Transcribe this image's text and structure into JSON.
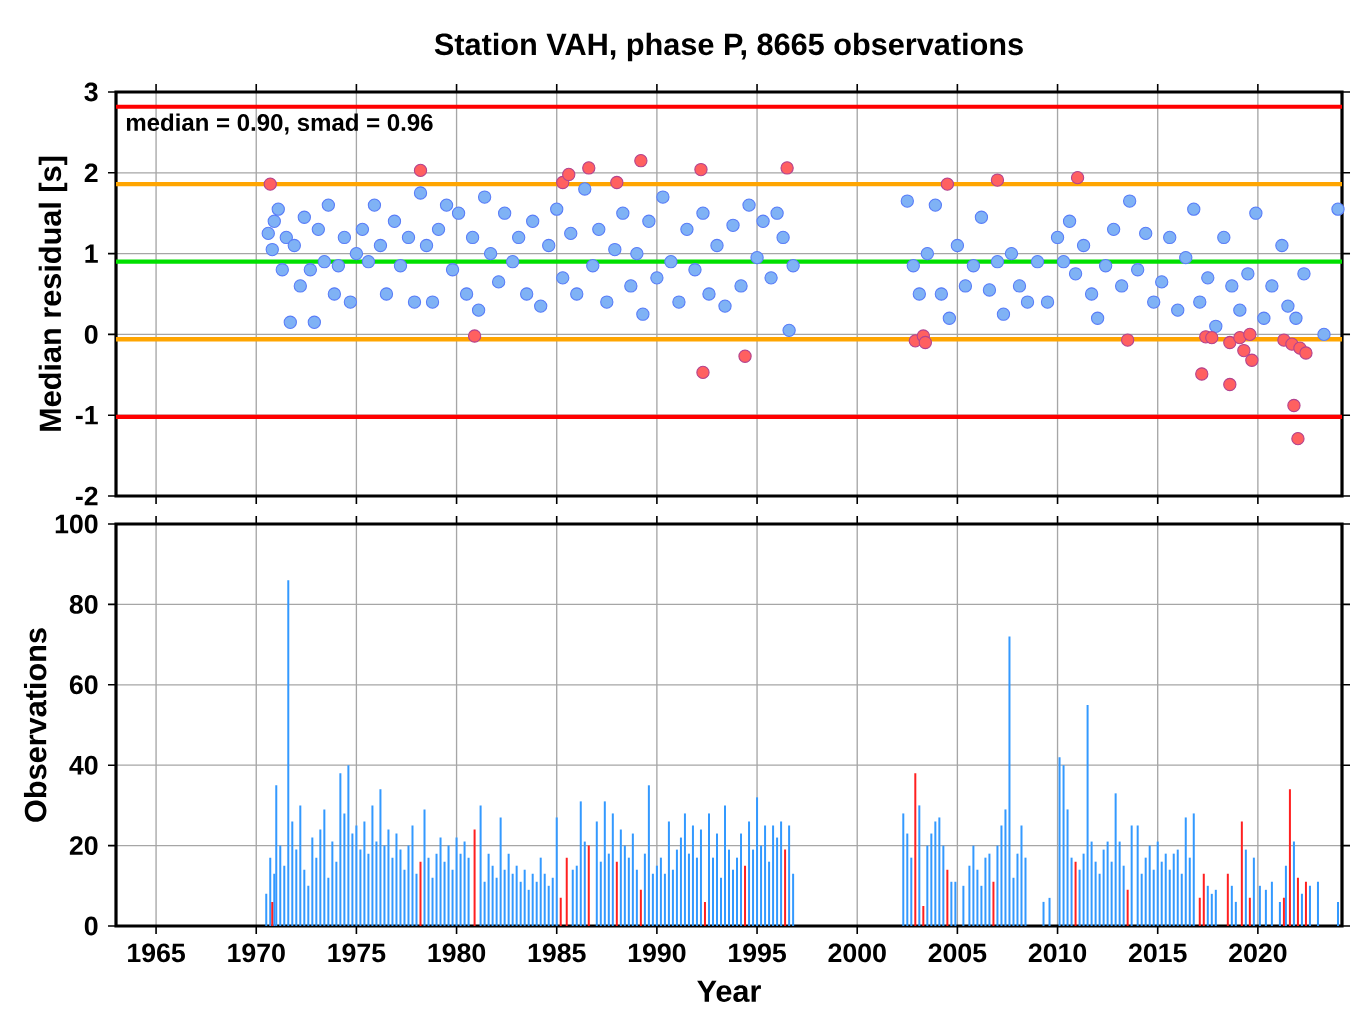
{
  "chart_data": [
    {
      "type": "scatter",
      "title": "Station VAH, phase P, 8665 observations",
      "ylabel": "Median residual [s]",
      "xlim": [
        1963,
        2024.2
      ],
      "xticks": [
        1965,
        1970,
        1975,
        1980,
        1985,
        1990,
        1995,
        2000,
        2005,
        2010,
        2015,
        2020
      ],
      "ylim": [
        -2,
        3
      ],
      "yticks": [
        -2,
        -1,
        0,
        1,
        2,
        3
      ],
      "grid": true,
      "tick_labels": "y",
      "marker": "circle",
      "annotations": [
        "median = 0.90, smad = 0.96"
      ],
      "ref_lines": [
        {
          "axis": "y",
          "value": 2.82,
          "color": "#ff0000"
        },
        {
          "axis": "y",
          "value": 1.86,
          "color": "#ffa500"
        },
        {
          "axis": "y",
          "value": 0.9,
          "color": "#00e000"
        },
        {
          "axis": "y",
          "value": -0.06,
          "color": "#ffa500"
        },
        {
          "axis": "y",
          "value": -1.02,
          "color": "#ff0000"
        }
      ],
      "series": [
        {
          "color": "#7fb2f5",
          "x": [
            1970.6,
            1970.8,
            1970.9,
            1971.1,
            1971.3,
            1971.5,
            1971.7,
            1971.9,
            1972.2,
            1972.4,
            1972.7,
            1972.9,
            1973.1,
            1973.4,
            1973.6,
            1973.9,
            1974.1,
            1974.4,
            1974.7,
            1975.0,
            1975.3,
            1975.6,
            1975.9,
            1976.2,
            1976.5,
            1976.9,
            1977.2,
            1977.6,
            1977.9,
            1978.2,
            1978.5,
            1978.8,
            1979.1,
            1979.5,
            1979.8,
            1980.1,
            1980.5,
            1980.8,
            1981.1,
            1981.4,
            1981.7,
            1982.1,
            1982.4,
            1982.8,
            1983.1,
            1983.5,
            1983.8,
            1984.2,
            1984.6,
            1985.0,
            1985.3,
            1985.7,
            1986.0,
            1986.4,
            1986.8,
            1987.1,
            1987.5,
            1987.9,
            1988.3,
            1988.7,
            1989.0,
            1989.3,
            1989.6,
            1990.0,
            1990.3,
            1990.7,
            1991.1,
            1991.5,
            1991.9,
            1992.3,
            1992.6,
            1993.0,
            1993.4,
            1993.8,
            1994.2,
            1994.6,
            1995.0,
            1995.3,
            1995.7,
            1996.0,
            1996.3,
            1996.6,
            1996.8,
            2002.5,
            2002.8,
            2003.1,
            2003.5,
            2003.9,
            2004.2,
            2004.6,
            2005.0,
            2005.4,
            2005.8,
            2006.2,
            2006.6,
            2007.0,
            2007.3,
            2007.7,
            2008.1,
            2008.5,
            2009.0,
            2009.5,
            2010.0,
            2010.3,
            2010.6,
            2010.9,
            2011.3,
            2011.7,
            2012.0,
            2012.4,
            2012.8,
            2013.2,
            2013.6,
            2014.0,
            2014.4,
            2014.8,
            2015.2,
            2015.6,
            2016.0,
            2016.4,
            2016.8,
            2017.1,
            2017.5,
            2017.9,
            2018.3,
            2018.7,
            2019.1,
            2019.5,
            2019.9,
            2020.3,
            2020.7,
            2021.2,
            2021.5,
            2021.9,
            2022.3,
            2023.3,
            2024.0
          ],
          "values": [
            1.25,
            1.05,
            1.4,
            1.55,
            0.8,
            1.2,
            0.15,
            1.1,
            0.6,
            1.45,
            0.8,
            0.15,
            1.3,
            0.9,
            1.6,
            0.5,
            0.85,
            1.2,
            0.4,
            1.0,
            1.3,
            0.9,
            1.6,
            1.1,
            0.5,
            1.4,
            0.85,
            1.2,
            0.4,
            1.75,
            1.1,
            0.4,
            1.3,
            1.6,
            0.8,
            1.5,
            0.5,
            1.2,
            0.3,
            1.7,
            1.0,
            0.65,
            1.5,
            0.9,
            1.2,
            0.5,
            1.4,
            0.35,
            1.1,
            1.55,
            0.7,
            1.25,
            0.5,
            1.8,
            0.85,
            1.3,
            0.4,
            1.05,
            1.5,
            0.6,
            1.0,
            0.25,
            1.4,
            0.7,
            1.7,
            0.9,
            0.4,
            1.3,
            0.8,
            1.5,
            0.5,
            1.1,
            0.35,
            1.35,
            0.6,
            1.6,
            0.95,
            1.4,
            0.7,
            1.5,
            1.2,
            0.05,
            0.85,
            1.65,
            0.85,
            0.5,
            1.0,
            1.6,
            0.5,
            0.2,
            1.1,
            0.6,
            0.85,
            1.45,
            0.55,
            0.9,
            0.25,
            1.0,
            0.6,
            0.4,
            0.9,
            0.4,
            1.2,
            0.9,
            1.4,
            0.75,
            1.1,
            0.5,
            0.2,
            0.85,
            1.3,
            0.6,
            1.65,
            0.8,
            1.25,
            0.4,
            0.65,
            1.2,
            0.3,
            0.95,
            1.55,
            0.4,
            0.7,
            0.1,
            1.2,
            0.6,
            0.3,
            0.75,
            1.5,
            0.2,
            0.6,
            1.1,
            0.35,
            0.2,
            0.75,
            0.0,
            1.55
          ]
        },
        {
          "color": "#ff6060",
          "x": [
            1970.7,
            1978.2,
            1980.9,
            1985.3,
            1985.6,
            1986.6,
            1988.0,
            1989.2,
            1992.2,
            1992.3,
            1994.4,
            1996.5,
            2002.9,
            2003.3,
            2003.4,
            2004.5,
            2007.0,
            2011.0,
            2013.5,
            2017.2,
            2017.4,
            2017.7,
            2018.6,
            2018.6,
            2019.1,
            2019.3,
            2019.6,
            2019.7,
            2021.3,
            2021.7,
            2021.8,
            2022.0,
            2022.1,
            2022.4
          ],
          "values": [
            1.86,
            2.03,
            -0.02,
            1.88,
            1.98,
            2.06,
            1.88,
            2.15,
            2.04,
            -0.47,
            -0.27,
            2.06,
            -0.08,
            -0.02,
            -0.1,
            1.86,
            1.91,
            1.94,
            -0.07,
            -0.49,
            -0.03,
            -0.04,
            -0.1,
            -0.62,
            -0.04,
            -0.2,
            0.0,
            -0.32,
            -0.07,
            -0.12,
            -0.88,
            -1.29,
            -0.17,
            -0.23
          ]
        }
      ]
    },
    {
      "type": "bar",
      "xlabel": "Year",
      "ylabel": "Observations",
      "xlim": [
        1963,
        2024.2
      ],
      "xticks": [
        1965,
        1970,
        1975,
        1980,
        1985,
        1990,
        1995,
        2000,
        2005,
        2010,
        2015,
        2020
      ],
      "ylim": [
        0,
        100
      ],
      "yticks": [
        0,
        20,
        40,
        60,
        80,
        100
      ],
      "grid": true,
      "x": [
        1970.5,
        1970.7,
        1970.8,
        1970.9,
        1971.0,
        1971.2,
        1971.4,
        1971.6,
        1971.8,
        1972.0,
        1972.2,
        1972.4,
        1972.6,
        1972.8,
        1973.0,
        1973.2,
        1973.4,
        1973.6,
        1973.8,
        1974.0,
        1974.2,
        1974.4,
        1974.6,
        1974.8,
        1975.0,
        1975.2,
        1975.4,
        1975.6,
        1975.8,
        1976.0,
        1976.2,
        1976.4,
        1976.6,
        1976.8,
        1977.0,
        1977.2,
        1977.4,
        1977.6,
        1977.8,
        1978.0,
        1978.2,
        1978.4,
        1978.6,
        1978.8,
        1979.0,
        1979.2,
        1979.4,
        1979.6,
        1979.8,
        1980.0,
        1980.2,
        1980.4,
        1980.6,
        1980.9,
        1981.2,
        1981.4,
        1981.6,
        1981.8,
        1982.0,
        1982.2,
        1982.4,
        1982.6,
        1982.8,
        1983.0,
        1983.2,
        1983.4,
        1983.6,
        1983.8,
        1984.0,
        1984.2,
        1984.4,
        1984.6,
        1984.8,
        1985.0,
        1985.2,
        1985.5,
        1985.8,
        1986.0,
        1986.2,
        1986.4,
        1986.6,
        1987.0,
        1987.2,
        1987.4,
        1987.6,
        1987.8,
        1988.0,
        1988.2,
        1988.4,
        1988.6,
        1988.8,
        1989.0,
        1989.2,
        1989.4,
        1989.6,
        1989.8,
        1990.0,
        1990.2,
        1990.4,
        1990.6,
        1990.8,
        1991.0,
        1991.2,
        1991.4,
        1991.6,
        1991.8,
        1992.0,
        1992.2,
        1992.4,
        1992.6,
        1992.8,
        1993.0,
        1993.2,
        1993.4,
        1993.6,
        1993.8,
        1994.0,
        1994.2,
        1994.4,
        1994.6,
        1994.8,
        1995.0,
        1995.2,
        1995.4,
        1995.6,
        1995.8,
        1996.0,
        1996.2,
        1996.4,
        1996.6,
        1996.8,
        2002.3,
        2002.5,
        2002.7,
        2002.9,
        2003.1,
        2003.3,
        2003.5,
        2003.7,
        2003.9,
        2004.1,
        2004.3,
        2004.5,
        2004.7,
        2004.9,
        2005.3,
        2005.6,
        2005.8,
        2006.0,
        2006.2,
        2006.4,
        2006.6,
        2006.8,
        2007.0,
        2007.2,
        2007.4,
        2007.6,
        2007.8,
        2008.0,
        2008.2,
        2008.4,
        2009.3,
        2009.6,
        2010.1,
        2010.3,
        2010.5,
        2010.7,
        2010.9,
        2011.1,
        2011.3,
        2011.5,
        2011.7,
        2011.9,
        2012.1,
        2012.3,
        2012.5,
        2012.7,
        2012.9,
        2013.1,
        2013.3,
        2013.5,
        2013.7,
        2014.0,
        2014.2,
        2014.4,
        2014.6,
        2014.8,
        2015.0,
        2015.2,
        2015.4,
        2015.6,
        2015.8,
        2016.0,
        2016.2,
        2016.4,
        2016.6,
        2016.8,
        2017.1,
        2017.3,
        2017.5,
        2017.7,
        2017.9,
        2018.5,
        2018.7,
        2018.9,
        2019.2,
        2019.4,
        2019.6,
        2019.8,
        2020.1,
        2020.4,
        2020.7,
        2021.1,
        2021.3,
        2021.4,
        2021.6,
        2021.8,
        2022.0,
        2022.2,
        2022.4,
        2022.6,
        2023.0,
        2024.0
      ],
      "series": [
        {
          "color": "#3399ff",
          "values": [
            8,
            17,
            null,
            13,
            35,
            20,
            15,
            86,
            26,
            19,
            30,
            14,
            10,
            22,
            17,
            24,
            29,
            12,
            21,
            16,
            38,
            28,
            40,
            23,
            25,
            19,
            26,
            18,
            30,
            21,
            34,
            20,
            24,
            17,
            23,
            19,
            14,
            20,
            25,
            13,
            null,
            29,
            17,
            12,
            18,
            22,
            16,
            20,
            14,
            22,
            18,
            21,
            17,
            null,
            30,
            11,
            18,
            15,
            12,
            27,
            14,
            18,
            13,
            15,
            11,
            14,
            9,
            13,
            11,
            17,
            13,
            10,
            12,
            27,
            null,
            null,
            14,
            15,
            31,
            21,
            null,
            26,
            16,
            31,
            18,
            28,
            null,
            24,
            20,
            17,
            23,
            14,
            null,
            18,
            35,
            13,
            15,
            17,
            13,
            26,
            14,
            19,
            22,
            28,
            18,
            25,
            17,
            24,
            null,
            28,
            17,
            23,
            12,
            30,
            19,
            14,
            17,
            23,
            null,
            26,
            19,
            32,
            20,
            25,
            16,
            25,
            22,
            26,
            null,
            25,
            13,
            28,
            23,
            17,
            null,
            30,
            null,
            20,
            23,
            26,
            27,
            20,
            null,
            11,
            11,
            10,
            15,
            20,
            14,
            10,
            17,
            18,
            null,
            20,
            25,
            29,
            72,
            12,
            18,
            25,
            17,
            6,
            7,
            42,
            40,
            29,
            17,
            null,
            14,
            18,
            55,
            21,
            16,
            13,
            19,
            21,
            16,
            33,
            21,
            15,
            null,
            25,
            25,
            13,
            17,
            20,
            14,
            21,
            16,
            18,
            14,
            18,
            19,
            13,
            27,
            17,
            28,
            null,
            null,
            10,
            8,
            9,
            null,
            10,
            6,
            null,
            19,
            null,
            17,
            10,
            9,
            11,
            6,
            null,
            15,
            null,
            21,
            null,
            8,
            null,
            10,
            11,
            6
          ]
        },
        {
          "color": "#ff2020",
          "values": [
            null,
            null,
            6,
            null,
            null,
            null,
            null,
            null,
            null,
            null,
            null,
            null,
            null,
            null,
            null,
            null,
            null,
            null,
            null,
            null,
            null,
            null,
            null,
            null,
            null,
            null,
            null,
            null,
            null,
            null,
            null,
            null,
            null,
            null,
            null,
            null,
            null,
            null,
            null,
            null,
            16,
            null,
            null,
            null,
            null,
            null,
            null,
            null,
            null,
            null,
            null,
            null,
            null,
            24,
            null,
            null,
            null,
            null,
            null,
            null,
            null,
            null,
            null,
            null,
            null,
            null,
            null,
            null,
            null,
            null,
            null,
            null,
            null,
            null,
            7,
            17,
            null,
            null,
            null,
            null,
            20,
            null,
            null,
            null,
            null,
            null,
            16,
            null,
            null,
            null,
            null,
            null,
            9,
            null,
            null,
            null,
            null,
            null,
            null,
            null,
            null,
            null,
            null,
            null,
            null,
            null,
            null,
            null,
            6,
            null,
            null,
            null,
            null,
            null,
            null,
            null,
            null,
            null,
            15,
            null,
            null,
            null,
            null,
            null,
            null,
            null,
            null,
            null,
            19,
            null,
            null,
            null,
            null,
            null,
            38,
            null,
            5,
            null,
            null,
            null,
            null,
            null,
            14,
            null,
            null,
            null,
            null,
            null,
            null,
            null,
            null,
            null,
            11,
            null,
            null,
            null,
            null,
            null,
            null,
            null,
            null,
            null,
            null,
            null,
            null,
            null,
            null,
            16,
            null,
            null,
            null,
            null,
            null,
            null,
            null,
            null,
            null,
            null,
            null,
            null,
            9,
            null,
            null,
            null,
            null,
            null,
            null,
            null,
            null,
            null,
            null,
            null,
            null,
            null,
            null,
            null,
            null,
            7,
            13,
            null,
            null,
            null,
            13,
            null,
            null,
            26,
            null,
            7,
            null,
            null,
            null,
            null,
            null,
            7,
            null,
            34,
            null,
            12,
            null,
            11,
            null,
            null,
            null
          ]
        }
      ]
    }
  ]
}
